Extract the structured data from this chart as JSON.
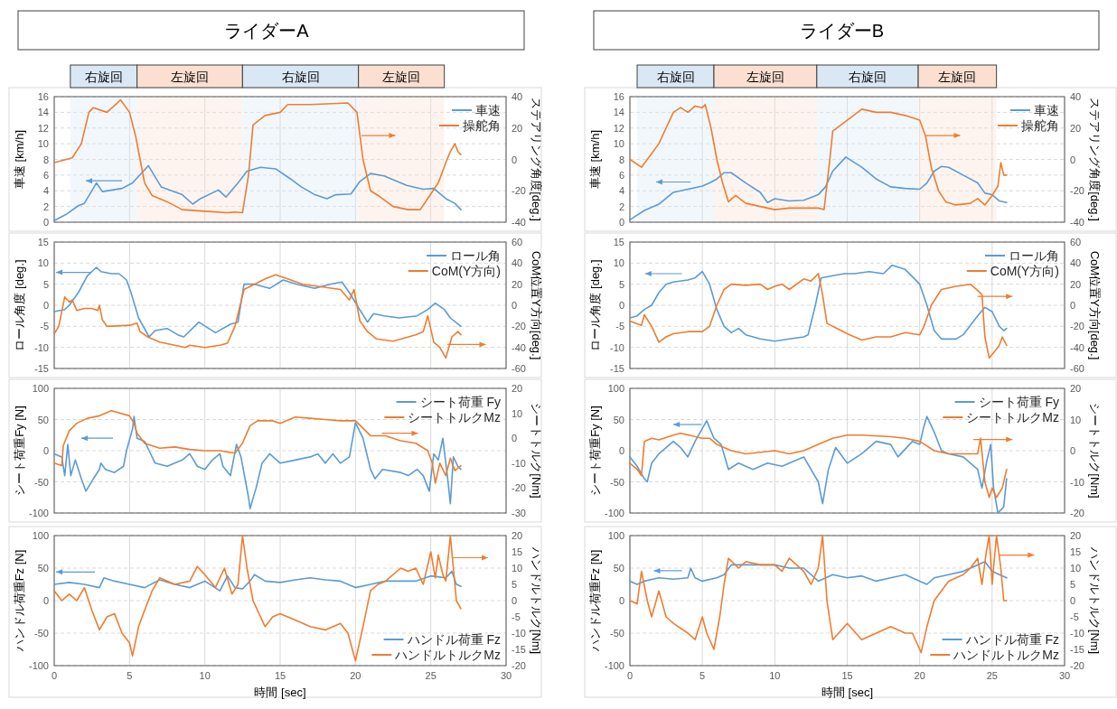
{
  "chart_data": [
    {
      "type": "line",
      "title": "ライダーA",
      "ylabel": "車速 [km/h]",
      "y2label": "ステアリング角度[deg.]",
      "xlim": [
        0,
        30
      ],
      "xticks": [
        0,
        5,
        10,
        15,
        20,
        25,
        30
      ],
      "ylim": [
        0,
        16
      ],
      "yticks": [
        0,
        2,
        4,
        6,
        8,
        10,
        12,
        14,
        16
      ],
      "y2lim": [
        -40,
        40
      ],
      "y2ticks": [
        -40,
        -20,
        0,
        20,
        40
      ],
      "grid": true,
      "legend": "top right",
      "tick_labels": "y",
      "bands": [
        {
          "axis": "x",
          "from": 1.07,
          "to": 5.5,
          "label": "右旋回",
          "color": "#dae8f5"
        },
        {
          "axis": "x",
          "from": 5.5,
          "to": 12.5,
          "label": "左旋回",
          "color": "#fbe0d1"
        },
        {
          "axis": "x",
          "from": 12.5,
          "to": 20.2,
          "label": "右旋回",
          "color": "#dae8f5"
        },
        {
          "axis": "x",
          "from": 20.2,
          "to": 25.9,
          "label": "左旋回",
          "color": "#fbe0d1"
        }
      ],
      "series": [
        {
          "name": "車速",
          "color": "#5b9bd5",
          "axis": "y",
          "x": [
            0,
            0.8,
            1.6,
            2.0,
            2.8,
            3.2,
            4.5,
            5.2,
            6.25,
            7.1,
            8.5,
            9.2,
            9.7,
            10.9,
            11.4,
            12.2,
            12.8,
            13.7,
            14.7,
            15.7,
            16.4,
            17.3,
            18.1,
            18.7,
            19.7,
            20.3,
            21.0,
            21.9,
            23.4,
            24.5,
            25.2,
            26.0,
            26.6,
            27.0
          ],
          "values": [
            0.2,
            1.0,
            2.1,
            2.4,
            5.0,
            3.9,
            4.3,
            5.0,
            7.2,
            4.5,
            3.5,
            2.3,
            3.0,
            4.1,
            3.2,
            5.0,
            6.5,
            7.0,
            6.8,
            5.5,
            4.5,
            3.5,
            3.0,
            3.5,
            3.6,
            5.2,
            6.2,
            5.9,
            4.7,
            4.2,
            4.3,
            3.0,
            2.4,
            1.6
          ]
        },
        {
          "name": "操舵角",
          "color": "#ed7d31",
          "axis": "y2",
          "x": [
            0,
            1.2,
            1.8,
            2.3,
            2.6,
            3.5,
            4.2,
            4.4,
            5.0,
            5.4,
            5.7,
            6.0,
            6.5,
            7.5,
            8.5,
            10,
            11.5,
            12.0,
            12.5,
            12.9,
            13.2,
            14,
            15,
            15.5,
            17,
            19.5,
            20.1,
            20.5,
            21,
            21.5,
            22.5,
            23.5,
            24.3,
            25,
            25.5,
            26.0,
            26.3,
            26.6,
            26.8,
            27
          ],
          "values": [
            -2,
            1,
            10,
            30,
            33,
            30,
            36,
            38,
            30,
            15,
            0,
            -15,
            -23,
            -27,
            -32,
            -33,
            -34,
            -33.5,
            -34,
            -10,
            22,
            28,
            30,
            35,
            35,
            36,
            30,
            0,
            -20,
            -23,
            -30,
            -32,
            -32,
            -22,
            -15,
            -2,
            5,
            10,
            5,
            3
          ]
        }
      ]
    },
    {
      "type": "line",
      "ylabel": "ロール角度 [deg.]",
      "y2label": "CoM位置Y方向[deg.]",
      "xlim": [
        0,
        30
      ],
      "xticks": [
        0,
        5,
        10,
        15,
        20,
        25,
        30
      ],
      "ylim": [
        -15,
        15
      ],
      "yticks": [
        -15,
        -10,
        -5,
        0,
        5,
        10,
        15
      ],
      "y2lim": [
        -60,
        60
      ],
      "y2ticks": [
        -60,
        -40,
        -20,
        0,
        20,
        40,
        60
      ],
      "grid": true,
      "legend": "top right",
      "tick_labels": "y",
      "series": [
        {
          "name": "ロール角",
          "color": "#5b9bd5",
          "axis": "y",
          "x": [
            0,
            0.7,
            1.0,
            1.6,
            2.2,
            2.8,
            3.1,
            3.8,
            4.3,
            4.8,
            5.1,
            5.6,
            6.3,
            6.7,
            7.5,
            8.2,
            8.6,
            9.6,
            10.7,
            11.7,
            12.2,
            12.6,
            13.3,
            14.3,
            15.2,
            16.1,
            17.3,
            18.3,
            19.1,
            19.6,
            20.1,
            20.8,
            21.2,
            21.9,
            22.9,
            24.1,
            24.8,
            25.3,
            25.9,
            26.3,
            27.0
          ],
          "values": [
            -1.5,
            -1,
            0,
            3,
            7,
            9,
            8,
            7.5,
            7.5,
            6,
            3,
            -3,
            -7.5,
            -6,
            -5.5,
            -7,
            -7.5,
            -4,
            -6.5,
            -4.5,
            -4,
            5,
            5,
            4,
            6,
            5,
            4,
            5,
            5.5,
            3,
            0,
            -4,
            -2,
            -2.5,
            -3,
            -2.5,
            -1,
            0.5,
            -1,
            -3,
            -5
          ]
        },
        {
          "name": "CoM(Y方向)",
          "color": "#ed7d31",
          "axis": "y2",
          "x": [
            0,
            0.3,
            0.7,
            1.0,
            1.2,
            1.5,
            2,
            2.5,
            2.9,
            3.0,
            3.2,
            3.5,
            5,
            5.5,
            5.7,
            6.2,
            7,
            8,
            8.7,
            9,
            10,
            11,
            11.5,
            12,
            12.6,
            13.3,
            14,
            14.7,
            15.5,
            16.5,
            17.5,
            19,
            19.6,
            19.9,
            20.3,
            20.8,
            21.4,
            22.5,
            24,
            24.5,
            24.8,
            25.2,
            25.6,
            26.0,
            26.4,
            26.8,
            27.0
          ],
          "values": [
            -27,
            -20,
            8,
            3,
            5,
            -5,
            -3,
            -3,
            -5,
            0,
            -14,
            -20,
            -19,
            -17,
            -25,
            -30,
            -35,
            -38,
            -40,
            -38,
            -40,
            -38,
            -36,
            -20,
            15,
            20,
            25,
            29,
            25,
            20,
            18,
            15,
            5,
            15,
            -15,
            -25,
            -32,
            -34,
            -28,
            -25,
            -10,
            -35,
            -40,
            -50,
            -30,
            -25,
            -28
          ]
        }
      ]
    },
    {
      "type": "line",
      "ylabel": "シート荷重Fy [N]",
      "y2label": "シートトルク[Nm]",
      "xlim": [
        0,
        30
      ],
      "xticks": [
        0,
        5,
        10,
        15,
        20,
        25,
        30
      ],
      "ylim": [
        -100,
        100
      ],
      "yticks": [
        -100,
        -50,
        0,
        50,
        100
      ],
      "y2lim": [
        -30,
        20
      ],
      "y2ticks": [
        -30,
        -20,
        -10,
        0,
        10,
        20
      ],
      "grid": true,
      "legend": "top right",
      "tick_labels": "y",
      "series": [
        {
          "name": "シート荷重 Fy",
          "color": "#5b9bd5",
          "axis": "y",
          "x": [
            0,
            0.5,
            0.7,
            0.9,
            1.1,
            1.4,
            1.8,
            2.1,
            2.6,
            3.0,
            3.1,
            3.4,
            4,
            4.6,
            4.8,
            5.2,
            5.3,
            5.5,
            6,
            6.3,
            6.7,
            7.5,
            8.5,
            9.0,
            9.5,
            10,
            10.5,
            11,
            11.2,
            11.7,
            12.1,
            12.4,
            12.9,
            13.0,
            13.4,
            13.8,
            14.3,
            15,
            16,
            17,
            17.5,
            18,
            18.5,
            19,
            19.6,
            20.0,
            20.5,
            21,
            21.3,
            21.8,
            23,
            23.5,
            24.1,
            24.5,
            24.9,
            25.2,
            25.5,
            25.8,
            26.1,
            26.3,
            26.5,
            26.8,
            27
          ],
          "values": [
            -5,
            -10,
            -40,
            10,
            -40,
            -15,
            -45,
            -65,
            -45,
            -30,
            -20,
            -30,
            -35,
            -25,
            0,
            35,
            55,
            20,
            15,
            0,
            -20,
            -25,
            -15,
            -5,
            -25,
            -30,
            -15,
            -5,
            -25,
            -40,
            10,
            -10,
            -75,
            -93,
            -60,
            -20,
            -5,
            -20,
            -15,
            -10,
            -5,
            -20,
            -5,
            -20,
            -10,
            45,
            20,
            -30,
            -45,
            -30,
            -35,
            -40,
            -30,
            -40,
            -65,
            -5,
            -15,
            20,
            -40,
            -85,
            -10,
            -25,
            -30
          ]
        },
        {
          "name": "シートトルクMz",
          "color": "#ed7d31",
          "axis": "y2",
          "x": [
            0,
            0.5,
            0.6,
            1,
            1.5,
            2.2,
            3,
            3.8,
            5,
            5.3,
            5.5,
            6,
            7,
            8,
            9,
            10,
            11,
            12,
            12.5,
            13,
            13.5,
            14.5,
            15,
            16,
            17,
            18,
            19,
            20,
            20.5,
            21,
            22,
            23,
            24,
            24.8,
            25.1,
            25.3,
            25.6,
            26,
            26.3,
            26.6,
            27
          ],
          "values": [
            -10,
            -11,
            -3,
            3,
            6,
            8,
            9,
            11,
            9,
            6,
            2,
            -2,
            -4,
            -3.5,
            -4.5,
            -5,
            -5,
            -6,
            -2,
            5,
            7,
            7,
            6,
            8.5,
            8,
            7.5,
            7,
            7,
            4,
            1,
            1,
            -1,
            -2,
            -5,
            -10,
            -18,
            -10,
            -15,
            -8,
            -13,
            -11
          ]
        }
      ]
    },
    {
      "type": "line",
      "ylabel": "ハンドル荷重Fz [N]",
      "y2label": "ハンドルトルク[Nm]",
      "xlabel": "時間 [sec]",
      "xlim": [
        0,
        30
      ],
      "xticks": [
        0,
        5,
        10,
        15,
        20,
        25,
        30
      ],
      "ylim": [
        -100,
        100
      ],
      "yticks": [
        -100,
        -50,
        0,
        50,
        100
      ],
      "y2lim": [
        -20,
        20
      ],
      "y2ticks": [
        -20,
        -15,
        -10,
        -5,
        0,
        5,
        10,
        15,
        20
      ],
      "grid": true,
      "legend": "bottom right",
      "series": [
        {
          "name": "ハンドル荷重 Fz",
          "color": "#5b9bd5",
          "axis": "y",
          "x": [
            0,
            1,
            2,
            3,
            3.3,
            4,
            5,
            6,
            7,
            8,
            9,
            10,
            11,
            11.5,
            12,
            12.5,
            13,
            13.3,
            14,
            15,
            16,
            17,
            18,
            19,
            20,
            21,
            22,
            23,
            24,
            25,
            26,
            26.4,
            26.7,
            27
          ],
          "values": [
            25,
            28,
            25,
            20,
            35,
            30,
            25,
            20,
            32,
            25,
            20,
            30,
            15,
            38,
            20,
            18,
            30,
            40,
            30,
            28,
            32,
            35,
            32,
            30,
            20,
            25,
            30,
            30,
            30,
            38,
            35,
            45,
            25,
            22
          ]
        },
        {
          "name": "ハンドルトルクMz",
          "color": "#ed7d31",
          "axis": "y2",
          "x": [
            0,
            0.5,
            1,
            1.5,
            2,
            2.5,
            3,
            3.5,
            4,
            4.5,
            5,
            5.2,
            5.6,
            6,
            6.5,
            7,
            8,
            9,
            9.5,
            10,
            10.7,
            11.3,
            11.8,
            12.2,
            12.5,
            12.8,
            13.2,
            13.5,
            14,
            14.5,
            15,
            16,
            17,
            18,
            19,
            19.5,
            20,
            20.5,
            21,
            21.5,
            22,
            23,
            23.5,
            24,
            24.5,
            25,
            25.3,
            25.5,
            25.8,
            26.0,
            26.3,
            26.7,
            27
          ],
          "values": [
            3,
            0,
            2,
            0,
            4,
            -3,
            -9,
            -5,
            -4,
            -10,
            -13,
            -17,
            -8,
            -3,
            3,
            7,
            5,
            6,
            10.5,
            8,
            4,
            10,
            2,
            5,
            20,
            10,
            0,
            -3,
            -8,
            -5,
            -4,
            -6,
            -8,
            -9,
            -7,
            -10,
            -18.5,
            -8,
            3,
            5,
            6,
            10,
            9,
            10,
            5,
            15,
            7,
            14,
            8,
            6,
            20,
            0,
            -2.5
          ]
        }
      ]
    },
    {
      "type": "line",
      "title": "ライダーB",
      "ylabel": "車速 [km/h]",
      "y2label": "ステアリング角度[deg.]",
      "xlim": [
        0,
        30
      ],
      "xticks": [
        0,
        5,
        10,
        15,
        20,
        25,
        30
      ],
      "ylim": [
        0,
        16
      ],
      "yticks": [
        0,
        2,
        4,
        6,
        8,
        10,
        12,
        14,
        16
      ],
      "y2lim": [
        -40,
        40
      ],
      "y2ticks": [
        -40,
        -20,
        0,
        20,
        40
      ],
      "grid": true,
      "legend": "top right",
      "tick_labels": "y",
      "bands": [
        {
          "axis": "x",
          "from": 0.5,
          "to": 5.8,
          "label": "右旋回",
          "color": "#dae8f5"
        },
        {
          "axis": "x",
          "from": 5.8,
          "to": 12.9,
          "label": "左旋回",
          "color": "#fbe0d1"
        },
        {
          "axis": "x",
          "from": 12.9,
          "to": 19.9,
          "label": "右旋回",
          "color": "#dae8f5"
        },
        {
          "axis": "x",
          "from": 19.9,
          "to": 25.3,
          "label": "左旋回",
          "color": "#fbe0d1"
        }
      ],
      "series": [
        {
          "name": "車速",
          "color": "#5b9bd5",
          "axis": "y",
          "x": [
            0,
            1,
            2,
            3,
            4,
            5,
            5.5,
            6,
            6.5,
            7.0,
            8,
            9,
            9.5,
            10,
            11,
            12,
            13,
            13.5,
            14,
            14.5,
            14.9,
            16,
            17,
            18,
            19,
            20,
            20.5,
            21,
            21.5,
            22,
            23,
            24,
            24.5,
            25,
            25.5,
            26
          ],
          "values": [
            0.3,
            1.5,
            2.3,
            3.8,
            4.2,
            4.6,
            5.0,
            5.5,
            6.3,
            6.3,
            5.0,
            3.8,
            2.5,
            3.0,
            2.7,
            2.8,
            3.5,
            4.5,
            6.5,
            7.5,
            8.3,
            7.0,
            5.5,
            4.5,
            4.3,
            4.2,
            5.0,
            6.5,
            7.1,
            7.0,
            6.0,
            5.0,
            3.7,
            3.5,
            2.7,
            2.5
          ]
        },
        {
          "name": "操舵角",
          "color": "#ed7d31",
          "axis": "y2",
          "x": [
            0,
            0.8,
            1.2,
            2,
            2.5,
            3,
            3.5,
            4,
            4.5,
            5,
            5.2,
            5.6,
            6,
            6.4,
            6.8,
            7.3,
            8,
            9,
            10,
            11,
            12,
            13,
            13.4,
            13.8,
            14,
            15,
            16,
            17,
            18,
            19,
            20,
            20.4,
            20.8,
            21.3,
            21.8,
            22.5,
            23.5,
            24,
            24.5,
            25,
            25.4,
            25.6,
            25.8,
            26
          ],
          "values": [
            0,
            -5,
            0,
            10,
            20,
            30,
            33,
            30,
            34,
            33,
            35,
            20,
            0,
            -15,
            -27,
            -23,
            -28,
            -30,
            -32,
            -31,
            -31,
            -31,
            -32,
            0,
            18,
            25,
            32,
            30,
            30,
            28,
            25,
            15,
            -5,
            -20,
            -27,
            -29,
            -28,
            -25,
            -29,
            -23,
            -17,
            -2,
            -10,
            -10
          ]
        }
      ]
    },
    {
      "type": "line",
      "ylabel": "ロール角度 [deg.]",
      "y2label": "CoM位置Y方向[deg.]",
      "xlim": [
        0,
        30
      ],
      "xticks": [
        0,
        5,
        10,
        15,
        20,
        25,
        30
      ],
      "ylim": [
        -15,
        15
      ],
      "yticks": [
        -15,
        -10,
        -5,
        0,
        5,
        10,
        15
      ],
      "y2lim": [
        -60,
        60
      ],
      "y2ticks": [
        -60,
        -40,
        -20,
        0,
        20,
        40,
        60
      ],
      "grid": true,
      "legend": "top right",
      "tick_labels": "y",
      "series": [
        {
          "name": "ロール角",
          "color": "#5b9bd5",
          "axis": "y",
          "x": [
            0,
            0.5,
            1,
            1.5,
            2,
            2.5,
            3,
            4,
            4.5,
            5,
            5.5,
            6,
            6.5,
            7,
            7.5,
            8,
            9,
            10,
            11,
            12,
            12.3,
            12.8,
            13.2,
            14,
            14.8,
            15.5,
            16.5,
            17.5,
            18.1,
            19,
            20,
            20.5,
            21,
            21.5,
            22.5,
            23,
            24,
            24.5,
            25,
            25.5,
            25.8,
            26
          ],
          "values": [
            -3,
            -2.5,
            -1,
            0,
            3,
            5,
            5.5,
            6,
            6.5,
            8,
            5,
            -1,
            -5,
            -6.5,
            -5.5,
            -7,
            -8,
            -8.5,
            -8,
            -7.5,
            -7,
            0,
            6.5,
            7,
            7.5,
            7.5,
            8,
            7.5,
            9.5,
            8.5,
            5,
            0,
            -6,
            -8,
            -8,
            -7,
            -2.5,
            -0.5,
            -1.5,
            -5,
            -6,
            -5.5
          ]
        },
        {
          "name": "CoM(Y方向)",
          "color": "#ed7d31",
          "axis": "y2",
          "x": [
            0,
            0.8,
            1.0,
            1.5,
            2,
            2.5,
            3,
            4,
            5,
            5.5,
            6,
            6.5,
            7,
            8,
            9,
            9.5,
            10,
            10.5,
            11,
            12,
            12.5,
            13,
            13.3,
            13.6,
            14,
            15,
            16,
            17,
            18,
            19,
            20,
            20.3,
            20.8,
            21.5,
            22.5,
            23.5,
            24,
            24.3,
            24.5,
            24.8,
            25.1,
            25.5,
            25.7,
            26
          ],
          "values": [
            -15,
            -19,
            -9,
            -20,
            -35,
            -30,
            -27,
            -25,
            -25,
            -20,
            0,
            15,
            20,
            19,
            20,
            15,
            18,
            20,
            15,
            25,
            23,
            30,
            10,
            -17,
            -20,
            -27,
            -33,
            -30,
            -30,
            -26,
            -28,
            -20,
            0,
            15,
            18,
            20,
            14,
            10,
            -30,
            -50,
            -45,
            -38,
            -30,
            -38
          ]
        }
      ]
    },
    {
      "type": "line",
      "ylabel": "シート荷重Fy [N]",
      "y2label": "シートトルク[Nm]",
      "xlim": [
        0,
        30
      ],
      "xticks": [
        0,
        5,
        10,
        15,
        20,
        25,
        30
      ],
      "ylim": [
        -100,
        100
      ],
      "yticks": [
        -100,
        -50,
        0,
        50,
        100
      ],
      "y2lim": [
        -20,
        20
      ],
      "y2ticks": [
        -20,
        -10,
        0,
        10,
        20
      ],
      "grid": true,
      "legend": "top right",
      "tick_labels": "y",
      "series": [
        {
          "name": "シート荷重 Fy",
          "color": "#5b9bd5",
          "axis": "y",
          "x": [
            0,
            0.5,
            1.0,
            1.2,
            1.5,
            2,
            2.5,
            3,
            3.5,
            4,
            4.5,
            5.3,
            5.8,
            6.3,
            6.8,
            7.5,
            8.5,
            9.5,
            10.5,
            11,
            12,
            13,
            13.3,
            13.7,
            14.2,
            15,
            16,
            17,
            18,
            18.5,
            19.5,
            20,
            20.3,
            20.5,
            21,
            21.5,
            22,
            23,
            24,
            24.3,
            24.6,
            24.9,
            25.1,
            25.4,
            25.8,
            26
          ],
          "values": [
            -10,
            -25,
            -45,
            -50,
            -20,
            -5,
            5,
            15,
            5,
            -10,
            15,
            48,
            20,
            10,
            -30,
            -20,
            -30,
            -20,
            -25,
            -20,
            -10,
            -50,
            -85,
            -30,
            5,
            -20,
            -5,
            15,
            10,
            -10,
            15,
            10,
            40,
            55,
            30,
            0,
            -5,
            -10,
            -30,
            -60,
            -20,
            10,
            -60,
            -100,
            -90,
            -45
          ]
        },
        {
          "name": "シートトルクMz",
          "color": "#ed7d31",
          "axis": "y2",
          "x": [
            0,
            0.5,
            0.8,
            1,
            1.5,
            2,
            3,
            3.5,
            5,
            5.5,
            6,
            7,
            8,
            10,
            11,
            12,
            13,
            14,
            15,
            16,
            18,
            19,
            20,
            21,
            22,
            23,
            24,
            24.2,
            24.5,
            24.8,
            25,
            25.3,
            25.7,
            26
          ],
          "values": [
            -4,
            -6,
            -8,
            3,
            4,
            3.5,
            5,
            5.6,
            4,
            4,
            2,
            0,
            -1,
            0,
            -1,
            0,
            2,
            4,
            5,
            5,
            4.5,
            4,
            3,
            0,
            -1,
            -1,
            -1,
            4,
            -10,
            -15,
            -12,
            -15,
            -12,
            -6
          ]
        }
      ]
    },
    {
      "type": "line",
      "ylabel": "ハンドル荷重Fz [N]",
      "y2label": "ハンドルトルク[Nm]",
      "xlabel": "時間 [sec]",
      "xlim": [
        0,
        30
      ],
      "xticks": [
        0,
        5,
        10,
        15,
        20,
        25,
        30
      ],
      "ylim": [
        -100,
        100
      ],
      "yticks": [
        -100,
        -50,
        0,
        50,
        100
      ],
      "y2lim": [
        -20,
        20
      ],
      "y2ticks": [
        -20,
        -15,
        -10,
        -5,
        0,
        5,
        10,
        15,
        20
      ],
      "grid": true,
      "legend": "bottom right",
      "series": [
        {
          "name": "ハンドル荷重 Fz",
          "color": "#5b9bd5",
          "axis": "y",
          "x": [
            0,
            0.5,
            1,
            2,
            3,
            4,
            4.2,
            4.5,
            5,
            6,
            6.5,
            7,
            8,
            9,
            10,
            11,
            12,
            13,
            14,
            15,
            16,
            17,
            18,
            19,
            20,
            20.5,
            21,
            22,
            23,
            24,
            24.5,
            25,
            25.5,
            26
          ],
          "values": [
            30,
            25,
            30,
            35,
            33,
            35,
            50,
            35,
            30,
            35,
            40,
            55,
            55,
            55,
            55,
            50,
            50,
            30,
            40,
            35,
            38,
            30,
            35,
            40,
            30,
            25,
            35,
            40,
            45,
            55,
            60,
            45,
            40,
            35
          ]
        },
        {
          "name": "ハンドルトルクMz",
          "color": "#ed7d31",
          "axis": "y2",
          "x": [
            0,
            0.5,
            0.8,
            1.2,
            1.5,
            2,
            2.5,
            3,
            4,
            4.5,
            5,
            5.3,
            5.8,
            6.2,
            6.5,
            6.8,
            7.5,
            8,
            9,
            10,
            10.5,
            11,
            12,
            12.5,
            13,
            13.3,
            13.6,
            14,
            15,
            16,
            17,
            18,
            19,
            19.5,
            20,
            20.1,
            20.5,
            21,
            22,
            23,
            23.5,
            24,
            24.3,
            24.6,
            24.8,
            25,
            25.3,
            25.6,
            25.8,
            26
          ],
          "values": [
            0,
            -1,
            9,
            0,
            -5,
            3,
            -5,
            -7,
            -10,
            -12,
            -5,
            -10,
            -15,
            -5,
            5,
            13,
            10,
            12,
            11,
            11,
            9,
            13,
            9,
            5,
            10,
            20,
            0,
            -12,
            -7,
            -12,
            -10,
            -8,
            -10,
            -10,
            -15,
            -16,
            -8,
            0,
            6,
            8,
            10,
            13,
            5,
            15,
            20,
            5,
            20,
            10,
            0,
            0
          ]
        }
      ]
    }
  ]
}
